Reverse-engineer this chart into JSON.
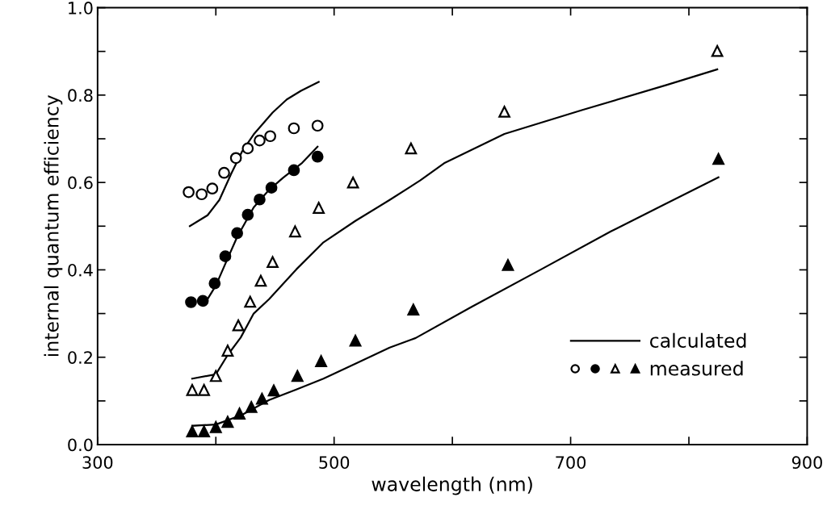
{
  "chart_data": {
    "type": "scatter",
    "xlabel": "wavelength (nm)",
    "ylabel": "internal quantum efficiency",
    "xlim": [
      300,
      900
    ],
    "ylim": [
      0.0,
      1.0
    ],
    "xticks": [
      300,
      {
        "value": 400,
        "label": null
      },
      500,
      {
        "value": 600,
        "label": null
      },
      700,
      {
        "value": 800,
        "label": null
      },
      900
    ],
    "yticks": [
      {
        "value": 0.0,
        "label": "0.0"
      },
      {
        "value": 0.1,
        "label": null
      },
      {
        "value": 0.2,
        "label": "0.2"
      },
      {
        "value": 0.3,
        "label": null
      },
      {
        "value": 0.4,
        "label": "0.4"
      },
      {
        "value": 0.5,
        "label": null
      },
      {
        "value": 0.6,
        "label": "0.6"
      },
      {
        "value": 0.7,
        "label": null
      },
      {
        "value": 0.8,
        "label": "0.8"
      },
      {
        "value": 0.9,
        "label": null
      },
      {
        "value": 1.0,
        "label": "1.0"
      }
    ],
    "grid": false,
    "legend": "bottom right",
    "series": [
      {
        "type": "line",
        "name": "calculated",
        "color": "#000000",
        "line_style": "solid",
        "marker": "none",
        "x": [
          378,
          393,
          403,
          413,
          422,
          432,
          448,
          460,
          472,
          487
        ],
        "values": [
          0.5,
          0.525,
          0.56,
          0.62,
          0.67,
          0.71,
          0.76,
          0.79,
          0.81,
          0.83
        ]
      },
      {
        "type": "line",
        "color": "#000000",
        "line_style": "solid",
        "marker": "none",
        "x": [
          393,
          400,
          409,
          418,
          432,
          445,
          457,
          473,
          486
        ],
        "values": [
          0.333,
          0.364,
          0.42,
          0.475,
          0.543,
          0.583,
          0.611,
          0.645,
          0.682
        ]
      },
      {
        "type": "line",
        "color": "#000000",
        "line_style": "solid",
        "marker": "none",
        "x": [
          380,
          400,
          410,
          421,
          432,
          445,
          468,
          491,
          518,
          547,
          573,
          593,
          644,
          710,
          781,
          824
        ],
        "values": [
          0.151,
          0.161,
          0.205,
          0.245,
          0.3,
          0.333,
          0.401,
          0.463,
          0.512,
          0.56,
          0.605,
          0.644,
          0.711,
          0.766,
          0.823,
          0.859
        ]
      },
      {
        "type": "line",
        "color": "#000000",
        "line_style": "solid",
        "marker": "none",
        "x": [
          380,
          400,
          422,
          445,
          468,
          491,
          518,
          547,
          569,
          616,
          675,
          734,
          825
        ],
        "values": [
          0.043,
          0.046,
          0.068,
          0.102,
          0.126,
          0.151,
          0.185,
          0.222,
          0.244,
          0.315,
          0.401,
          0.488,
          0.612
        ]
      },
      {
        "color": "#ffffff",
        "marker": "circle",
        "x": [
          377,
          388,
          397,
          407,
          417,
          427,
          437,
          446,
          466,
          486
        ],
        "values": [
          0.578,
          0.573,
          0.586,
          0.622,
          0.656,
          0.678,
          0.696,
          0.706,
          0.724,
          0.73
        ]
      },
      {
        "color": "#000000",
        "marker": "circle",
        "x": [
          379,
          389,
          399,
          408,
          418,
          427,
          437,
          447,
          466,
          486
        ],
        "values": [
          0.326,
          0.329,
          0.369,
          0.431,
          0.484,
          0.526,
          0.561,
          0.588,
          0.628,
          0.659
        ]
      },
      {
        "color": "#ffffff",
        "marker": "triangle",
        "x": [
          380,
          390,
          400,
          410,
          419,
          429,
          438,
          448,
          467,
          487,
          516,
          565,
          644,
          824
        ],
        "values": [
          0.125,
          0.125,
          0.157,
          0.215,
          0.273,
          0.327,
          0.375,
          0.418,
          0.488,
          0.542,
          0.6,
          0.678,
          0.762,
          0.901
        ]
      },
      {
        "name": "measured",
        "color": "#000000",
        "marker": "triangle",
        "x": [
          380,
          390,
          400,
          410,
          420,
          430,
          439,
          449,
          469,
          489,
          518,
          567,
          647,
          825
        ],
        "values": [
          0.03,
          0.03,
          0.04,
          0.052,
          0.071,
          0.086,
          0.105,
          0.124,
          0.157,
          0.191,
          0.238,
          0.309,
          0.411,
          0.654
        ]
      }
    ]
  }
}
